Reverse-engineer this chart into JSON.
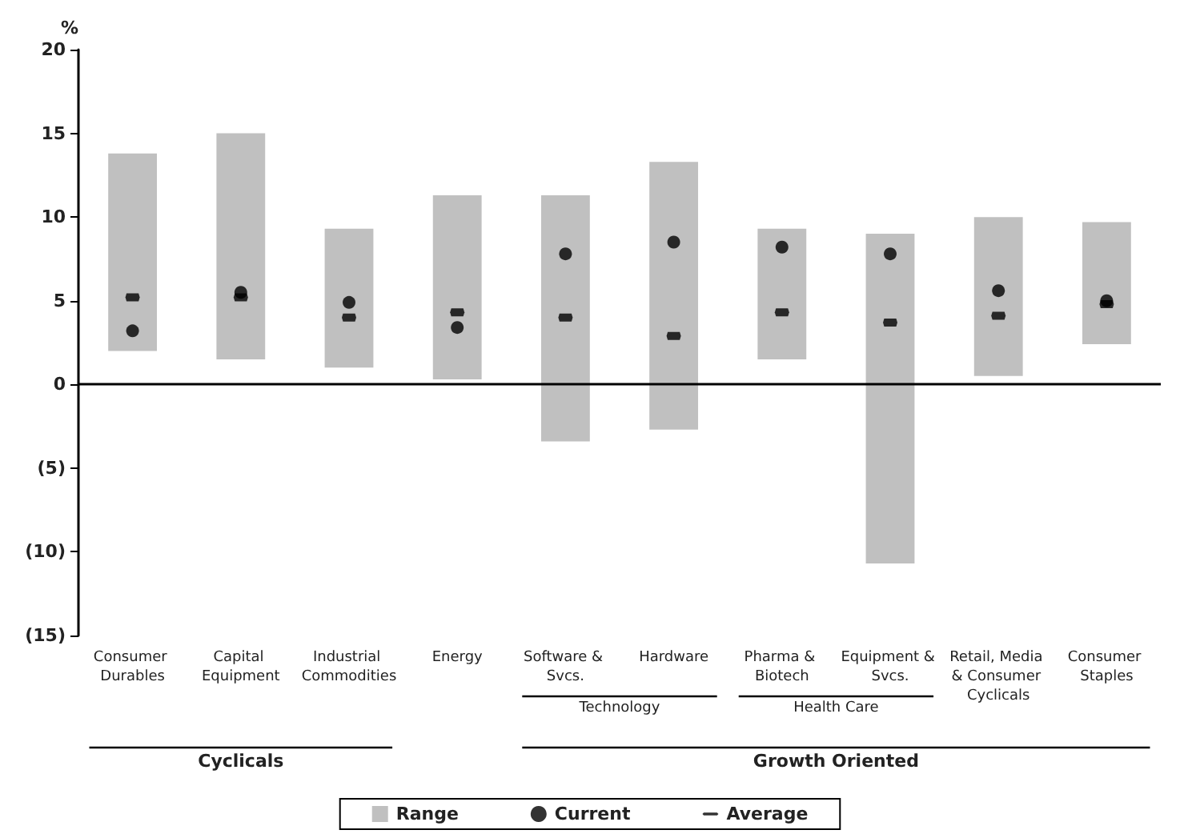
{
  "chart_data": {
    "type": "bar",
    "ylabel": "%",
    "categories": [
      "Consumer Durables",
      "Capital Equipment",
      "Industrial Commodities",
      "Energy",
      "Software & Svcs.",
      "Hardware",
      "Pharma & Biotech",
      "Equipment & Svcs.",
      "Retail, Media & Consumer Cyclicals",
      "Consumer Staples"
    ],
    "series": [
      {
        "name": "Range",
        "color": "#c0c0c0",
        "base": [
          2.0,
          1.5,
          1.0,
          0.3,
          -3.4,
          -2.7,
          1.5,
          -10.7,
          0.5,
          2.4
        ],
        "values": [
          11.8,
          13.5,
          8.3,
          11.0,
          14.7,
          16.0,
          7.8,
          19.7,
          9.5,
          7.3
        ]
      },
      {
        "name": "Current",
        "type": "scatter",
        "marker": "circle",
        "color": "#000000",
        "values": [
          3.2,
          5.5,
          4.9,
          3.4,
          7.8,
          8.5,
          8.2,
          7.8,
          5.6,
          5.0
        ]
      },
      {
        "name": "Average",
        "type": "scatter",
        "color": "#000000",
        "values": [
          5.2,
          5.2,
          4.0,
          4.3,
          4.0,
          2.9,
          4.3,
          3.7,
          4.1,
          4.8
        ]
      }
    ],
    "ylim": [
      -15,
      20
    ],
    "yticks": [
      {
        "value": -15,
        "label": "(15)"
      },
      {
        "value": -10,
        "label": "(10)"
      },
      {
        "value": -5,
        "label": "(5)"
      },
      0,
      5,
      10,
      15,
      20
    ],
    "annotations": [
      "Technology",
      "Health Care",
      "Cyclicals",
      "Growth Oriented"
    ],
    "ref_lines": [
      {
        "axis": "y",
        "value": 0,
        "color": "#000000"
      }
    ],
    "legend": "bottom",
    "grid": false
  }
}
